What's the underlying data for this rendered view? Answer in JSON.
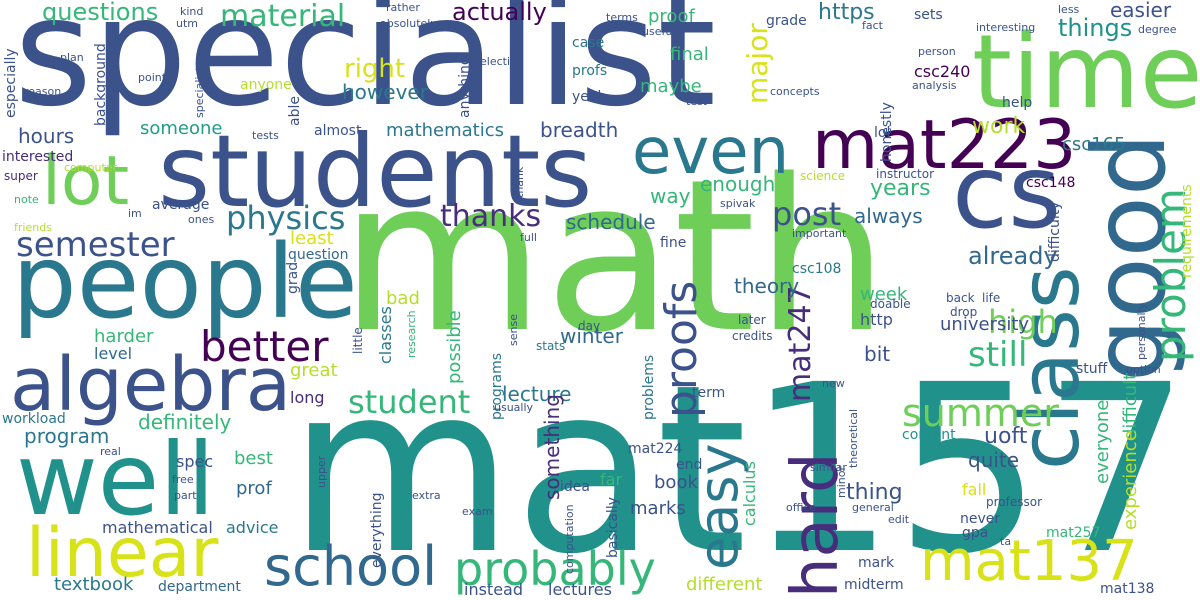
{
  "palette": {
    "navy": "#3b528b",
    "indigo": "#472d7b",
    "dark_purple": "#440154",
    "blue": "#31688e",
    "teal_blue": "#2a788e",
    "teal": "#21918c",
    "green_teal": "#1f9e89",
    "green": "#35b779",
    "light_green": "#6ece58",
    "lime": "#b5de2b",
    "yellow": "#d8e219"
  },
  "words": [
    "specialist",
    "math",
    "mat157",
    "students",
    "time",
    "people",
    "cs",
    "good",
    "class",
    "algebra",
    "well",
    "lot",
    "even",
    "mat223",
    "hard",
    "linear",
    "school",
    "easy",
    "mat137",
    "probably",
    "problem",
    "proofs",
    "semester",
    "better",
    "summer",
    "physics",
    "student",
    "thanks",
    "high",
    "still",
    "mat247",
    "material",
    "questions",
    "actually",
    "major",
    "post",
    "already",
    "right",
    "however",
    "program",
    "definitely",
    "hours",
    "someone",
    "mathematics",
    "breadth",
    "work",
    "things",
    "easier",
    "https",
    "years",
    "enough",
    "schedule",
    "way",
    "theory",
    "always",
    "week",
    "university",
    "uoft",
    "quite",
    "thing",
    "lecture",
    "something",
    "possible",
    "winter",
    "harder",
    "level",
    "great",
    "bad",
    "least",
    "proof",
    "final",
    "maybe",
    "csc165",
    "csc240",
    "csc148",
    "csc108",
    "http",
    "bit",
    "fall",
    "everyone",
    "difficult",
    "experience",
    "content",
    "textbook",
    "department",
    "different",
    "instead",
    "lectures",
    "midterm",
    "mat138",
    "mat257",
    "calculus",
    "marks",
    "book",
    "end",
    "mat224",
    "far",
    "idea",
    "programs",
    "problems",
    "best",
    "spec",
    "prof",
    "advice",
    "mathematical",
    "long",
    "workload",
    "interested",
    "super",
    "note",
    "friends",
    "computer",
    "im",
    "ones",
    "average",
    "question",
    "grad",
    "little",
    "classes",
    "research",
    "sense",
    "stats",
    "day",
    "later",
    "credits",
    "doable",
    "back",
    "life",
    "drop",
    "science",
    "important",
    "spivak",
    "thank",
    "full",
    "lol",
    "honestly",
    "instructor",
    "requirements",
    "personally",
    "test",
    "concepts",
    "analysis",
    "person",
    "interesting",
    "degree",
    "less",
    "sets",
    "grade",
    "terms",
    "useful",
    "case",
    "profs",
    "yeah",
    "elective",
    "anything",
    "absolutely",
    "rather",
    "kind",
    "utm",
    "plan",
    "point",
    "reason",
    "background",
    "especially",
    "specialists",
    "tests",
    "anyone",
    "able",
    "almost",
    "help",
    "difficulty",
    "mark",
    "never",
    "gpa",
    "ta",
    "professor",
    "general",
    "edit",
    "minor",
    "theoretical",
    "similar",
    "office",
    "new",
    "stuff",
    "option",
    "term",
    "basically",
    "computation",
    "exam",
    "extra",
    "free",
    "part",
    "real",
    "usually",
    "everything",
    "upper",
    "fine",
    "fact"
  ]
}
